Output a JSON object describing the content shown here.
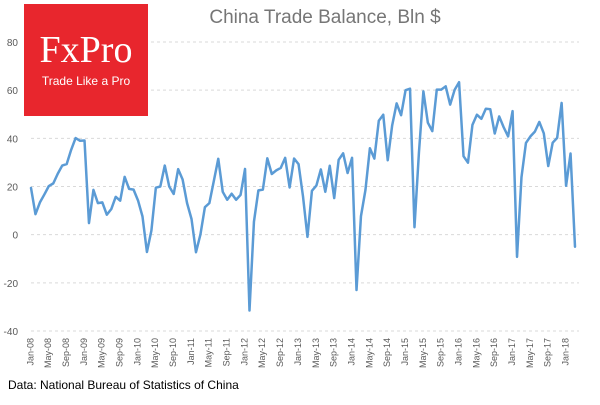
{
  "logo": {
    "brand": "FxPro",
    "tagline": "Trade Like a Pro"
  },
  "source": "Data: National Bureau of Statistics of China",
  "colors": {
    "line": "#5b9bd5",
    "logo_bg": "#e8262d",
    "grid": "#d9d9d9",
    "text": "#595959"
  },
  "chart_data": {
    "type": "line",
    "title": "China Trade Balance, Bln $",
    "xlabel": "",
    "ylabel": "",
    "ylim": [
      -40,
      80
    ],
    "yticks": [
      -40,
      -20,
      0,
      20,
      40,
      60,
      80
    ],
    "grid": true,
    "legend": "none",
    "xticks": [
      "Jan-08",
      "May-08",
      "Sep-08",
      "Jan-09",
      "May-09",
      "Sep-09",
      "Jan-10",
      "May-10",
      "Sep-10",
      "Jan-11",
      "May-11",
      "Sep-11",
      "Jan-12",
      "May-12",
      "Sep-12",
      "Jan-13",
      "May-13",
      "Sep-13",
      "Jan-14",
      "May-14",
      "Sep-14",
      "Jan-15",
      "May-15",
      "Sep-15",
      "Jan-16",
      "May-16",
      "Sep-16",
      "Jan-17",
      "May-17",
      "Sep-17",
      "Jan-18"
    ],
    "series": [
      {
        "start": "Jan-08",
        "frequency": "monthly",
        "values": [
          19.4,
          8.5,
          13.4,
          16.7,
          20.2,
          21.3,
          25.3,
          28.7,
          29.3,
          35.2,
          40.1,
          39.0,
          39.1,
          4.8,
          18.6,
          13.1,
          13.4,
          8.3,
          10.6,
          15.7,
          14.1,
          24.0,
          19.0,
          18.7,
          14.2,
          7.6,
          -7.2,
          1.7,
          19.5,
          20.0,
          28.7,
          20.0,
          16.9,
          27.2,
          22.9,
          13.1,
          6.5,
          -7.3,
          0.1,
          11.4,
          13.1,
          22.3,
          31.5,
          17.8,
          14.5,
          17.0,
          14.5,
          16.5,
          27.3,
          -31.5,
          5.4,
          18.4,
          18.7,
          31.7,
          25.2,
          26.7,
          27.7,
          31.9,
          19.6,
          31.6,
          29.3,
          15.9,
          -0.9,
          18.2,
          20.4,
          27.1,
          17.8,
          28.6,
          15.2,
          31.1,
          33.8,
          25.6,
          31.9,
          -23.0,
          7.7,
          18.5,
          35.9,
          31.6,
          47.3,
          49.8,
          30.9,
          45.4,
          54.5,
          49.6,
          60.0,
          60.6,
          3.1,
          34.1,
          59.5,
          46.5,
          43.0,
          60.2,
          60.2,
          61.6,
          54.0,
          60.1,
          63.3,
          32.6,
          29.9,
          45.6,
          49.8,
          48.1,
          52.3,
          52.1,
          42.0,
          49.1,
          44.6,
          40.8,
          51.3,
          -9.2,
          23.9,
          38.1,
          40.8,
          42.8,
          46.8,
          42.1,
          28.5,
          38.2,
          40.2,
          54.7,
          20.3,
          33.7,
          -5.0
        ]
      }
    ]
  }
}
